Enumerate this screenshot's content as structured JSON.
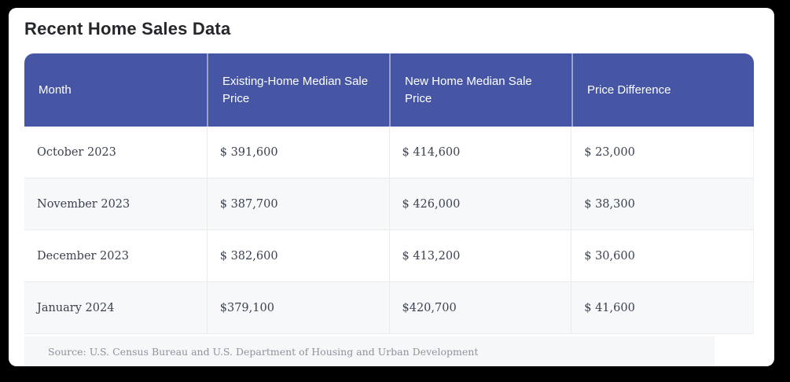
{
  "page": {
    "title": "Recent Home Sales Data"
  },
  "colors": {
    "header_bg": "#4656a4",
    "header_text": "#ffffff",
    "row_stripe": "#f7f8fa",
    "body_text": "#3a4150",
    "frame": "#000000"
  },
  "table": {
    "columns": [
      "Month",
      "Existing-Home Median Sale Price",
      "New Home Median Sale Price",
      "Price Difference"
    ],
    "rows": [
      {
        "month": "October 2023",
        "existing": "$ 391,600",
        "new": "$ 414,600",
        "diff": "$ 23,000"
      },
      {
        "month": "November 2023",
        "existing": "$ 387,700",
        "new": "$ 426,000",
        "diff": "$ 38,300"
      },
      {
        "month": "December 2023",
        "existing": "$ 382,600",
        "new": "$ 413,200",
        "diff": "$ 30,600"
      },
      {
        "month": "January 2024",
        "existing": "$379,100",
        "new": "$420,700",
        "diff": "$ 41,600"
      }
    ]
  },
  "source": {
    "text": "Source: U.S. Census Bureau and U.S. Department of Housing and Urban Development"
  },
  "chart_data": {
    "type": "table",
    "title": "Recent Home Sales Data",
    "columns": [
      "Month",
      "Existing-Home Median Sale Price",
      "New Home Median Sale Price",
      "Price Difference"
    ],
    "rows": [
      [
        "October 2023",
        391600,
        414600,
        23000
      ],
      [
        "November 2023",
        387700,
        426000,
        38300
      ],
      [
        "December 2023",
        382600,
        413200,
        30600
      ],
      [
        "January 2024",
        379100,
        420700,
        41600
      ]
    ],
    "source": "Source: U.S. Census Bureau and U.S. Department of Housing and Urban Development"
  }
}
